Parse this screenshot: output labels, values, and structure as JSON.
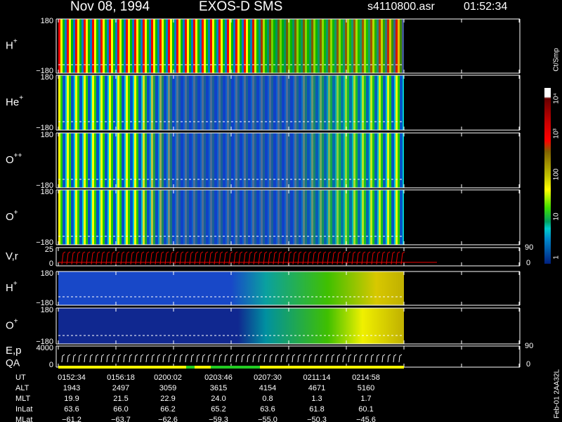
{
  "header": {
    "date": "Nov 08, 1994",
    "instrument": "EXOS-D SMS",
    "file": "s4110800.asr",
    "time": "01:52:34"
  },
  "panels": [
    {
      "label": "H",
      "sup": "+",
      "top": "180",
      "bottom": "−180"
    },
    {
      "label": "He",
      "sup": "+",
      "top": "180",
      "bottom": "−180"
    },
    {
      "label": "O",
      "sup": "++",
      "top": "180",
      "bottom": "−180"
    },
    {
      "label": "O",
      "sup": "+",
      "top": "180",
      "bottom": "−180"
    },
    {
      "label": "V,r",
      "top": "25",
      "bottom": "0",
      "right_top": "90",
      "right_bottom": "0"
    },
    {
      "label": "H",
      "sup": "+",
      "top": "180",
      "bottom": "−180"
    },
    {
      "label": "O",
      "sup": "+",
      "top": "180",
      "bottom": "−180"
    },
    {
      "label": "E,p",
      "label2": "QA",
      "top": "4000",
      "bottom": "0",
      "right_top": "90",
      "right_bottom": "0"
    }
  ],
  "colorbar": {
    "title": "Ct/Smp",
    "labels": [
      "10⁴",
      "10³",
      "100",
      "10",
      "1"
    ]
  },
  "table": {
    "rows": [
      [
        "UT",
        "0152:34",
        "0156:18",
        "0200:02",
        "0203:46",
        "0207:30",
        "0211:14",
        "0214:58"
      ],
      [
        "ALT",
        "1943",
        "2497",
        "3059",
        "3615",
        "4154",
        "4671",
        "5160"
      ],
      [
        "MLT",
        "19.9",
        "21.5",
        "22.9",
        "24.0",
        "0.8",
        "1.3",
        "1.7"
      ],
      [
        "InLat",
        "63.6",
        "66.0",
        "66.2",
        "65.2",
        "63.6",
        "61.8",
        "60.1"
      ],
      [
        "MLat",
        "−61.2",
        "−63.7",
        "−62.6",
        "−59.3",
        "−55.0",
        "−50.3",
        "−45.6"
      ]
    ]
  },
  "footer": "Feb-01 2AA32L"
}
